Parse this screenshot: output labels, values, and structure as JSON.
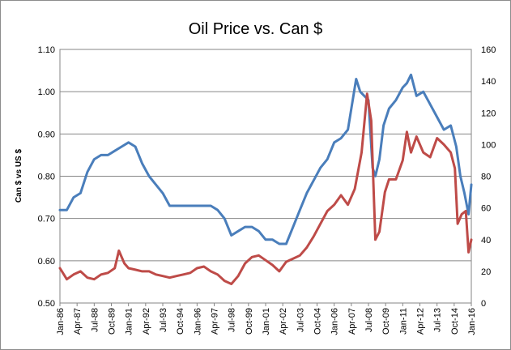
{
  "chart_data": {
    "type": "line",
    "title": "Oil Price vs. Can $",
    "xlabel": "",
    "ylabel": "Can $ vs US $",
    "y2label": "",
    "ylim": [
      0.5,
      1.1
    ],
    "y2lim": [
      0,
      160
    ],
    "yticks": [
      "0.50",
      "0.60",
      "0.70",
      "0.80",
      "0.90",
      "1.00",
      "1.10"
    ],
    "y2ticks": [
      "0",
      "20",
      "40",
      "60",
      "80",
      "100",
      "120",
      "140",
      "160"
    ],
    "grid": true,
    "legend": "none",
    "x_tick_labels": [
      "Jan-86",
      "Apr-87",
      "Jul-88",
      "Oct-89",
      "Jan-91",
      "Apr-92",
      "Jul-93",
      "Oct-94",
      "Jan-96",
      "Apr-97",
      "Jul-98",
      "Oct-99",
      "Jan-01",
      "Apr-02",
      "Jul-03",
      "Oct-04",
      "Jan-06",
      "Apr-07",
      "Jul-08",
      "Oct-09",
      "Jan-11",
      "Apr-12",
      "Jul-13",
      "Oct-14",
      "Jan-16"
    ],
    "x_start_year": 1986,
    "x_end_year": 2016,
    "series": [
      {
        "axis": "left",
        "color": "#4a7ebb",
        "x": [
          1986.0,
          1986.5,
          1987.0,
          1987.5,
          1988.0,
          1988.5,
          1989.0,
          1989.5,
          1990.0,
          1990.5,
          1991.0,
          1991.5,
          1992.0,
          1992.5,
          1993.0,
          1993.5,
          1994.0,
          1994.5,
          1995.0,
          1995.5,
          1996.0,
          1996.5,
          1997.0,
          1997.5,
          1998.0,
          1998.5,
          1999.0,
          1999.5,
          2000.0,
          2000.5,
          2001.0,
          2001.5,
          2002.0,
          2002.5,
          2003.0,
          2003.5,
          2004.0,
          2004.5,
          2005.0,
          2005.5,
          2006.0,
          2006.5,
          2007.0,
          2007.3,
          2007.6,
          2007.9,
          2008.2,
          2008.5,
          2008.8,
          2009.0,
          2009.3,
          2009.6,
          2010.0,
          2010.5,
          2011.0,
          2011.3,
          2011.6,
          2012.0,
          2012.5,
          2013.0,
          2013.5,
          2014.0,
          2014.5,
          2014.9,
          2015.2,
          2015.5,
          2015.8,
          2016.0
        ],
        "values": [
          0.72,
          0.72,
          0.75,
          0.76,
          0.81,
          0.84,
          0.85,
          0.85,
          0.86,
          0.87,
          0.88,
          0.87,
          0.83,
          0.8,
          0.78,
          0.76,
          0.73,
          0.73,
          0.73,
          0.73,
          0.73,
          0.73,
          0.73,
          0.72,
          0.7,
          0.66,
          0.67,
          0.68,
          0.68,
          0.67,
          0.65,
          0.65,
          0.64,
          0.64,
          0.68,
          0.72,
          0.76,
          0.79,
          0.82,
          0.84,
          0.88,
          0.89,
          0.91,
          0.97,
          1.03,
          1.0,
          0.99,
          0.98,
          0.82,
          0.8,
          0.84,
          0.92,
          0.96,
          0.98,
          1.01,
          1.02,
          1.04,
          0.99,
          1.0,
          0.97,
          0.94,
          0.91,
          0.92,
          0.87,
          0.8,
          0.76,
          0.71,
          0.78
        ]
      },
      {
        "axis": "right",
        "color": "#be4b48",
        "x": [
          1986.0,
          1986.5,
          1987.0,
          1987.5,
          1988.0,
          1988.5,
          1989.0,
          1989.5,
          1990.0,
          1990.3,
          1990.7,
          1991.0,
          1991.5,
          1992.0,
          1992.5,
          1993.0,
          1993.5,
          1994.0,
          1994.5,
          1995.0,
          1995.5,
          1996.0,
          1996.5,
          1997.0,
          1997.5,
          1998.0,
          1998.5,
          1999.0,
          1999.5,
          2000.0,
          2000.5,
          2001.0,
          2001.5,
          2002.0,
          2002.5,
          2003.0,
          2003.5,
          2004.0,
          2004.5,
          2005.0,
          2005.5,
          2006.0,
          2006.5,
          2007.0,
          2007.5,
          2008.0,
          2008.4,
          2008.7,
          2009.0,
          2009.3,
          2009.7,
          2010.0,
          2010.5,
          2011.0,
          2011.3,
          2011.6,
          2012.0,
          2012.5,
          2013.0,
          2013.5,
          2014.0,
          2014.5,
          2014.8,
          2015.0,
          2015.3,
          2015.6,
          2015.8,
          2016.0
        ],
        "values": [
          22,
          15,
          18,
          20,
          16,
          15,
          18,
          19,
          22,
          33,
          25,
          22,
          21,
          20,
          20,
          18,
          17,
          16,
          17,
          18,
          19,
          22,
          23,
          20,
          18,
          14,
          12,
          17,
          25,
          29,
          30,
          27,
          24,
          20,
          26,
          28,
          30,
          35,
          42,
          50,
          58,
          62,
          68,
          62,
          72,
          95,
          132,
          115,
          40,
          45,
          70,
          78,
          78,
          90,
          108,
          95,
          105,
          95,
          92,
          104,
          100,
          95,
          85,
          50,
          56,
          58,
          32,
          40
        ]
      }
    ]
  }
}
